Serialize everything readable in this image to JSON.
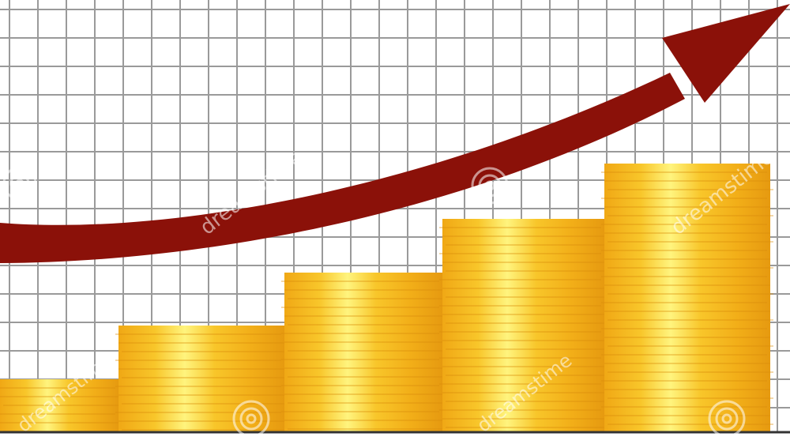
{
  "watermark": {
    "text": "dreamstime",
    "color": "#ffffff"
  },
  "colors": {
    "grid": "#9a9a9a",
    "background": "#ffffff",
    "arrow": "#8b1109",
    "baseline": "#333333",
    "coin_dark": "#e9a013",
    "coin_mid": "#f6bf1f",
    "coin_light": "#fff27a"
  },
  "icons": {
    "arrow": "trend-up-arrow-icon",
    "stacks": "coin-stack-icon",
    "watermark_logo": "watermark-logo-icon"
  }
}
